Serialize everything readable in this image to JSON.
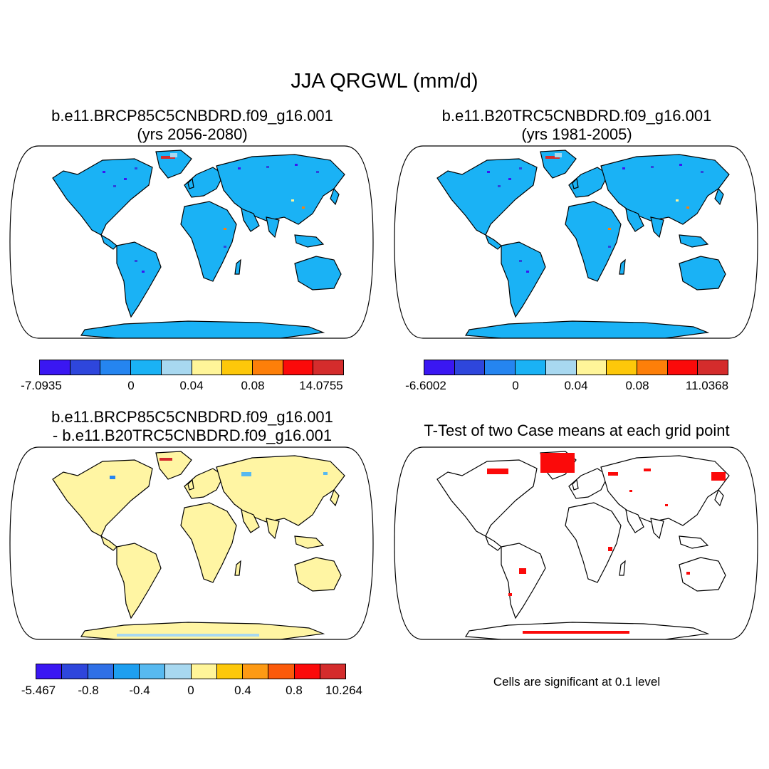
{
  "main_title": "JJA QRGWL (mm/d)",
  "panels": [
    {
      "title_line1": "b.e11.BRCP85C5CNBDRD.f09_g16.001",
      "title_line2": "(yrs 2056-2080)",
      "land_fill": "#1ab2f5",
      "colorbar": {
        "colors": [
          "#3a17f2",
          "#2e46dc",
          "#2585f0",
          "#1ab2f5",
          "#a8d8f0",
          "#fff599",
          "#fdc80a",
          "#fd7f09",
          "#fb0a0a",
          "#d42c2c"
        ],
        "labels": [
          "-7.0935",
          "0",
          "0.04",
          "0.08",
          "14.0755"
        ]
      }
    },
    {
      "title_line1": "b.e11.B20TRC5CNBDRD.f09_g16.001",
      "title_line2": "(yrs 1981-2005)",
      "land_fill": "#1ab2f5",
      "colorbar": {
        "colors": [
          "#3a17f2",
          "#2e46dc",
          "#2585f0",
          "#1ab2f5",
          "#a8d8f0",
          "#fff599",
          "#fdc80a",
          "#fd7f09",
          "#fb0a0a",
          "#d42c2c"
        ],
        "labels": [
          "-6.6002",
          "0",
          "0.04",
          "0.08",
          "11.0368"
        ]
      }
    },
    {
      "title_line1": "b.e11.BRCP85C5CNBDRD.f09_g16.001",
      "title_line2": "- b.e11.B20TRC5CNBDRD.f09_g16.001",
      "land_fill": "#fff5a3",
      "colorbar": {
        "colors": [
          "#3a17f2",
          "#2e46dc",
          "#3070e6",
          "#1e9ff0",
          "#57b9f0",
          "#a8d8f0",
          "#fff599",
          "#fdc80a",
          "#fd9a14",
          "#fb5a0a",
          "#fb0a0a",
          "#d42c2c"
        ],
        "labels": [
          "-5.467",
          "-0.8",
          "-0.4",
          "0",
          "0.4",
          "0.8",
          "10.264"
        ]
      }
    },
    {
      "title_line1": "T-Test of two Case means at each grid point",
      "land_fill": "#ffffff",
      "note": "Cells are significant at 0.1 level"
    }
  ]
}
